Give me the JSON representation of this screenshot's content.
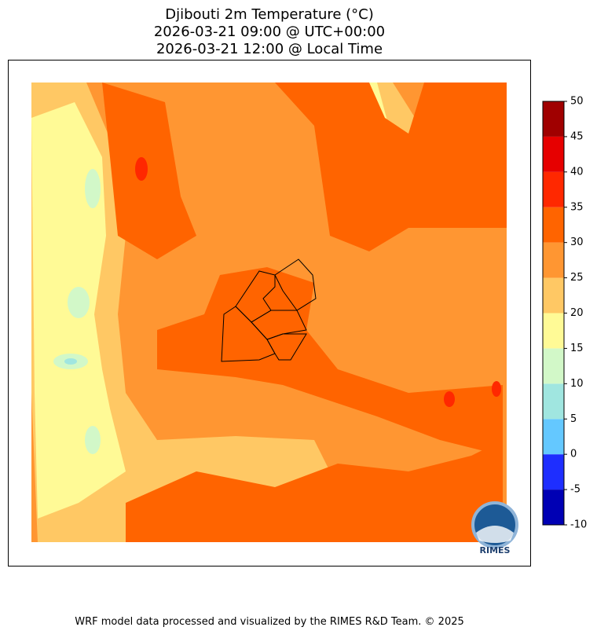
{
  "map": {
    "title": [
      "Djibouti 2m Temperature (°C)",
      "2026-03-21 09:00 @ UTC+00:00",
      "2026-03-21 12:00 @ Local Time"
    ],
    "colorbar": {
      "levels": [
        -10,
        -5,
        0,
        5,
        10,
        15,
        20,
        25,
        30,
        35,
        40,
        45,
        50
      ],
      "colors": [
        "#0000b4",
        "#1e2eff",
        "#64c8ff",
        "#a0e6e0",
        "#d2f8c8",
        "#fffa96",
        "#ffc864",
        "#ff9632",
        "#ff6400",
        "#ff2800",
        "#e60000",
        "#a00000"
      ]
    },
    "logo": "RIMES",
    "footer": "WRF model data processed and visualized by the RIMES R&D Team. © 2025"
  }
}
